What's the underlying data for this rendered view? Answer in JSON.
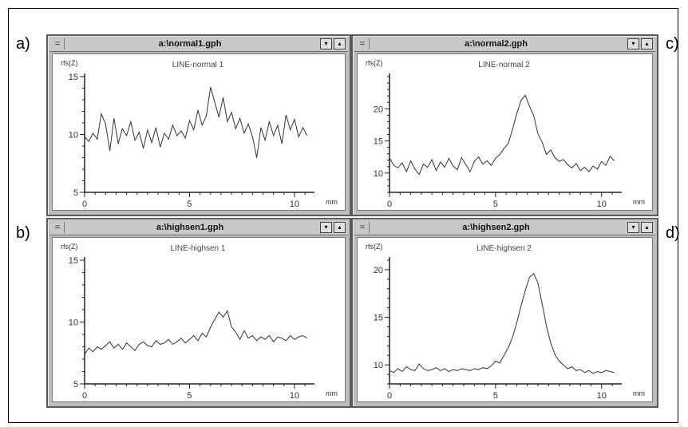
{
  "panel_labels": [
    "a)",
    "b)",
    "c)",
    "d)"
  ],
  "windows": [
    {
      "title": "a:\\normal1.gph",
      "controls": {
        "system": "=",
        "minimize": "▾",
        "maximize": "▴"
      },
      "chart_data": {
        "type": "line",
        "title": "LINE-normal 1",
        "ylabel": "rfs(Z)",
        "xlabel": "mm",
        "xlim": [
          0,
          10.8
        ],
        "ylim": [
          5,
          15
        ],
        "xticks": [
          0,
          5,
          10
        ],
        "yticks": [
          5,
          10,
          15
        ],
        "series": [
          {
            "x": [
              0,
              0.2,
              0.4,
              0.6,
              0.8,
              1,
              1.2,
              1.4,
              1.6,
              1.8,
              2,
              2.2,
              2.4,
              2.6,
              2.8,
              3,
              3.2,
              3.4,
              3.6,
              3.8,
              4,
              4.2,
              4.4,
              4.6,
              4.8,
              5,
              5.2,
              5.4,
              5.6,
              5.8,
              6,
              6.2,
              6.4,
              6.6,
              6.8,
              7,
              7.2,
              7.4,
              7.6,
              7.8,
              8,
              8.2,
              8.4,
              8.6,
              8.8,
              9,
              9.2,
              9.4,
              9.6,
              9.8,
              10,
              10.2,
              10.4,
              10.6
            ],
            "values": [
              9.8,
              9.4,
              10.1,
              9.6,
              11.8,
              10.9,
              8.6,
              11.4,
              9.2,
              10.5,
              9.9,
              11.1,
              9.5,
              10.2,
              8.8,
              10.4,
              9.3,
              10.6,
              8.9,
              10.1,
              9.6,
              10.8,
              9.9,
              10.3,
              9.7,
              11.2,
              10.4,
              12.1,
              10.8,
              11.6,
              14.1,
              12.8,
              11.5,
              13.2,
              11.1,
              11.9,
              10.5,
              11.4,
              10.1,
              10.9,
              9.8,
              8.0,
              10.6,
              9.5,
              11.1,
              9.9,
              10.8,
              9.2,
              11.7,
              10.4,
              11.3,
              9.8,
              10.6,
              9.9
            ]
          }
        ]
      }
    },
    {
      "title": "a:\\normal2.gph",
      "controls": {
        "system": "=",
        "minimize": "▾",
        "maximize": "▴"
      },
      "chart_data": {
        "type": "line",
        "title": "LINE-normal 2",
        "ylabel": "rfs(Z)",
        "xlabel": "mm",
        "xlim": [
          0,
          10.8
        ],
        "ylim": [
          7,
          25
        ],
        "xticks": [
          0,
          5,
          10
        ],
        "yticks": [
          10,
          15,
          20
        ],
        "series": [
          {
            "x": [
              0,
              0.2,
              0.4,
              0.6,
              0.8,
              1,
              1.2,
              1.4,
              1.6,
              1.8,
              2,
              2.2,
              2.4,
              2.6,
              2.8,
              3,
              3.2,
              3.4,
              3.6,
              3.8,
              4,
              4.2,
              4.4,
              4.6,
              4.8,
              5,
              5.2,
              5.4,
              5.6,
              5.8,
              6,
              6.2,
              6.4,
              6.6,
              6.8,
              7,
              7.2,
              7.4,
              7.6,
              7.8,
              8,
              8.2,
              8.4,
              8.6,
              8.8,
              9,
              9.2,
              9.4,
              9.6,
              9.8,
              10,
              10.2,
              10.4,
              10.6
            ],
            "values": [
              12.4,
              11.2,
              10.8,
              11.6,
              10.2,
              11.9,
              10.6,
              9.8,
              11.4,
              10.9,
              12.1,
              10.4,
              11.7,
              10.9,
              12.3,
              11.1,
              10.5,
              12.4,
              11.3,
              10.2,
              11.8,
              12.5,
              11.4,
              11.9,
              11.2,
              12.3,
              12.9,
              13.8,
              14.6,
              16.8,
              19.2,
              21.3,
              22.1,
              20.4,
              18.9,
              16.1,
              14.8,
              12.9,
              13.6,
              12.4,
              11.8,
              12.1,
              11.3,
              10.8,
              11.5,
              10.4,
              10.9,
              10.2,
              11.1,
              10.6,
              11.8,
              11.2,
              12.6,
              11.9
            ]
          }
        ]
      }
    },
    {
      "title": "a:\\highsen1.gph",
      "controls": {
        "system": "=",
        "minimize": "▾",
        "maximize": "▴"
      },
      "chart_data": {
        "type": "line",
        "title": "LINE-highsen 1",
        "ylabel": "rfs(Z)",
        "xlabel": "mm",
        "xlim": [
          0,
          10.8
        ],
        "ylim": [
          5,
          15
        ],
        "xticks": [
          0,
          5,
          10
        ],
        "yticks": [
          5,
          10,
          15
        ],
        "series": [
          {
            "x": [
              0,
              0.2,
              0.4,
              0.6,
              0.8,
              1,
              1.2,
              1.4,
              1.6,
              1.8,
              2,
              2.2,
              2.4,
              2.6,
              2.8,
              3,
              3.2,
              3.4,
              3.6,
              3.8,
              4,
              4.2,
              4.4,
              4.6,
              4.8,
              5,
              5.2,
              5.4,
              5.6,
              5.8,
              6,
              6.2,
              6.4,
              6.6,
              6.8,
              7,
              7.2,
              7.4,
              7.6,
              7.8,
              8,
              8.2,
              8.4,
              8.6,
              8.8,
              9,
              9.2,
              9.4,
              9.6,
              9.8,
              10,
              10.2,
              10.4,
              10.6
            ],
            "values": [
              7.4,
              7.9,
              7.6,
              8.0,
              7.8,
              8.1,
              8.4,
              7.9,
              8.2,
              7.8,
              8.3,
              8.0,
              7.7,
              8.2,
              8.4,
              8.1,
              8.0,
              8.5,
              8.2,
              8.3,
              8.6,
              8.2,
              8.4,
              8.7,
              8.3,
              8.6,
              8.9,
              8.5,
              9.1,
              8.8,
              9.6,
              10.2,
              10.8,
              10.4,
              10.9,
              9.6,
              9.2,
              8.6,
              9.3,
              8.7,
              8.9,
              8.5,
              8.8,
              8.6,
              8.9,
              8.4,
              8.8,
              8.7,
              8.5,
              8.9,
              8.6,
              8.8,
              8.9,
              8.7
            ]
          }
        ]
      }
    },
    {
      "title": "a:\\highsen2.gph",
      "controls": {
        "system": "=",
        "minimize": "▾",
        "maximize": "▴"
      },
      "chart_data": {
        "type": "line",
        "title": "LINE-highsen 2",
        "ylabel": "rfs(Z)",
        "xlabel": "mm",
        "xlim": [
          0,
          10.8
        ],
        "ylim": [
          8,
          21
        ],
        "xticks": [
          0,
          5,
          10
        ],
        "yticks": [
          10,
          15,
          20
        ],
        "series": [
          {
            "x": [
              0,
              0.2,
              0.4,
              0.6,
              0.8,
              1,
              1.2,
              1.4,
              1.6,
              1.8,
              2,
              2.2,
              2.4,
              2.6,
              2.8,
              3,
              3.2,
              3.4,
              3.6,
              3.8,
              4,
              4.2,
              4.4,
              4.6,
              4.8,
              5,
              5.2,
              5.4,
              5.6,
              5.8,
              6,
              6.2,
              6.4,
              6.6,
              6.8,
              7,
              7.2,
              7.4,
              7.6,
              7.8,
              8,
              8.2,
              8.4,
              8.6,
              8.8,
              9,
              9.2,
              9.4,
              9.6,
              9.8,
              10,
              10.2,
              10.4,
              10.6
            ],
            "values": [
              9.4,
              9.2,
              9.6,
              9.3,
              9.8,
              9.5,
              9.4,
              10.1,
              9.6,
              9.4,
              9.5,
              9.7,
              9.4,
              9.6,
              9.3,
              9.5,
              9.4,
              9.6,
              9.5,
              9.4,
              9.6,
              9.5,
              9.7,
              9.6,
              9.9,
              10.4,
              10.2,
              11.0,
              11.8,
              12.9,
              14.4,
              16.2,
              17.8,
              19.2,
              19.6,
              18.6,
              16.4,
              14.1,
              12.3,
              11.1,
              10.4,
              10.0,
              9.6,
              9.8,
              9.4,
              9.5,
              9.2,
              9.4,
              9.1,
              9.3,
              9.2,
              9.4,
              9.3,
              9.2
            ]
          }
        ]
      }
    }
  ],
  "colors": {
    "line": "#333333",
    "axis": "#222222",
    "titlebar": "#c9c9c9",
    "frame": "#bdbdbd"
  }
}
